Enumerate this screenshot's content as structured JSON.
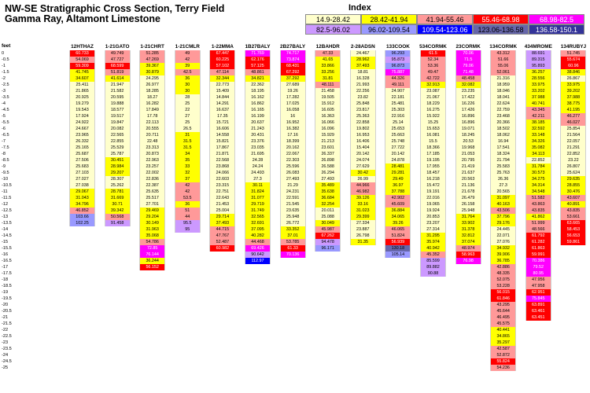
{
  "title": {
    "line1": "NW-SE Stratigraphic Cross Section, Terry Field",
    "line2": "Gamma Ray, Altamont Limestone"
  },
  "legend": {
    "title": "Index",
    "ranges": [
      {
        "label": "14.9-28.42",
        "color": "#FFFFCC",
        "text_color": "#000000"
      },
      {
        "label": "28.42-41.94",
        "color": "#FFFF00",
        "text_color": "#000000"
      },
      {
        "label": "41.94-55.46",
        "color": "#FF9999",
        "text_color": "#000000"
      },
      {
        "label": "55.46-68.98",
        "color": "#FF0000",
        "text_color": "#FFFFFF"
      },
      {
        "label": "68.98-82.5",
        "color": "#FF00FF",
        "text_color": "#FFFFFF"
      },
      {
        "label": "82.5-96.02",
        "color": "#CC99FF",
        "text_color": "#000000"
      },
      {
        "label": "96.02-109.54",
        "color": "#9999FF",
        "text_color": "#000000"
      },
      {
        "label": "109.54-123.06",
        "color": "#0000FF",
        "text_color": "#FFFFFF"
      },
      {
        "label": "123.06-136.58",
        "color": "#6666AA",
        "text_color": "#000000"
      },
      {
        "label": "136.58-150.1",
        "color": "#333399",
        "text_color": "#FFFFFF"
      }
    ]
  },
  "feet_header": "feet",
  "feet": [
    "0",
    "-0.5",
    "-1",
    "-1.5",
    "-2",
    "-2.5",
    "-3",
    "-3.5",
    "-4",
    "-4.5",
    "-5",
    "-5.5",
    "-6",
    "-6.5",
    "-7",
    "-7.5",
    "-8",
    "-8.5",
    "-9",
    "-9.5",
    "-10",
    "-10.5",
    "-11",
    "-11.5",
    "-12",
    "-12.5",
    "-13",
    "-13.5",
    "-14",
    "-14.5",
    "-15",
    "-15.5",
    "-16",
    "-16.5",
    "-17",
    "-17.5",
    "-18",
    "-18.5",
    "-19",
    "-19.5",
    "-20",
    "-20.5",
    "-21",
    "-21.5",
    "-22",
    "-22.5",
    "-23",
    "-23.5",
    "-24",
    "-24.5",
    "-25"
  ],
  "wells": [
    {
      "name": "12HTHAZ",
      "values": [
        "60.733",
        "54.069",
        "59.309",
        "41.745",
        "34.607",
        "25.411",
        "21.865",
        "20.925",
        "19.279",
        "19.543",
        "17.924",
        "24.922",
        "24.667",
        "23.965",
        "26.332",
        "25.165",
        "25.687",
        "27.506",
        "25.683",
        "27.103",
        "27.027",
        "27.038",
        "29.067",
        "31.043",
        "34.796",
        "46.852",
        "103.66",
        "102.25"
      ]
    },
    {
      "name": "1-21GATO",
      "values": [
        "49.749",
        "47.727",
        "68.599",
        "51.819",
        "41.614",
        "21.947",
        "21.582",
        "20.595",
        "19.888",
        "18.577",
        "19.517",
        "19.847",
        "20.082",
        "22.565",
        "22.855",
        "25.529",
        "25.787",
        "30.451",
        "28.984",
        "29.207",
        "28.307",
        "25.262",
        "28.781",
        "31.669",
        "30.71",
        "39.342",
        "50.568",
        "91.458"
      ]
    },
    {
      "name": "1-21CHRT",
      "values": [
        "51.285",
        "47.269",
        "39.367",
        "30.879",
        "24.295",
        "26.977",
        "18.285",
        "18.27",
        "16.282",
        "17.849",
        "17.78",
        "22.113",
        "20.555",
        "20.711",
        "22.48",
        "23.313",
        "20.873",
        "22.963",
        "23.257",
        "22.002",
        "22.836",
        "22.387",
        "25.635",
        "25.517",
        "27.701",
        "29.469",
        "29.204",
        "30.149",
        "31.963",
        "35.068",
        "54.786",
        "72.85",
        "76.144",
        "36.244",
        "56.152"
      ]
    },
    {
      "name": "1-21CMLR",
      "values": [
        "49",
        "42",
        "39",
        "42.5",
        "36",
        "30",
        "30",
        "28",
        "25",
        "22",
        "27",
        "25",
        "26.5",
        "31",
        "31.5",
        "31.5",
        "34",
        "35",
        "33",
        "32",
        "37",
        "42",
        "42",
        "53.5",
        "36",
        "51",
        "44",
        "95.5",
        "95"
      ]
    },
    {
      "name": "1-22MMA",
      "values": [
        "67.447",
        "60.225",
        "57.102",
        "47.114",
        "32.344",
        "22.773",
        "15.409",
        "14.844",
        "14.291",
        "16.637",
        "17.35",
        "15.721",
        "16.606",
        "14.558",
        "15.821",
        "17.867",
        "21.871",
        "22.568",
        "23.868",
        "24.066",
        "22.603",
        "23.315",
        "22.751",
        "22.643",
        "21.453",
        "25.004",
        "29.714",
        "37.493",
        "44.715",
        "47.767",
        "52.487",
        "60.982"
      ]
    },
    {
      "name": "1B27BALY",
      "values": [
        "71.769",
        "62.176",
        "57.125",
        "48.861",
        "34.821",
        "22.362",
        "18.195",
        "16.162",
        "16.862",
        "16.165",
        "16.199",
        "20.637",
        "21.243",
        "20.431",
        "23.376",
        "23.035",
        "21.695",
        "24.28",
        "24.24",
        "24.493",
        "27.3",
        "30.11",
        "31.824",
        "31.077",
        "29.719",
        "31.749",
        "32.565",
        "32.691",
        "37.095",
        "40.282",
        "44.468",
        "69.426",
        "90.642",
        "112.97"
      ]
    },
    {
      "name": "2B27BALY",
      "values": [
        "74.717",
        "73.874",
        "68.431",
        "67.292",
        "37.292",
        "27.689",
        "19.26",
        "17.282",
        "17.025",
        "16.058",
        "16",
        "16.952",
        "16.382",
        "17.16",
        "18.399",
        "20.162",
        "22.067",
        "22.303",
        "25.596",
        "26.083",
        "27.493",
        "21.29",
        "24.231",
        "22.591",
        "21.545",
        "23.635",
        "25.948",
        "26.772",
        "33.352",
        "37.01",
        "53.785",
        "61.33",
        "70.136"
      ]
    },
    {
      "name": "12BAHDR",
      "values": [
        "47.33",
        "41.65",
        "33.866",
        "33.256",
        "31.81",
        "48.111",
        "21.458",
        "19.505",
        "15.912",
        "16.605",
        "16.363",
        "16.066",
        "16.096",
        "15.929",
        "21.213",
        "23.601",
        "26.337",
        "26.898",
        "26.588",
        "26.294",
        "27.493",
        "35.489",
        "35.638",
        "36.684",
        "32.254",
        "20.011",
        "25.088",
        "30.049",
        "45.987",
        "67.262",
        "94.478",
        "96.171"
      ]
    },
    {
      "name": "2-28ADSN",
      "values": [
        "24.467",
        "28.962",
        "37.493",
        "18.81",
        "16.328",
        "21.993",
        "22.256",
        "23.82",
        "25.848",
        "23.817",
        "25.363",
        "22.858",
        "19.802",
        "16.953",
        "16.406",
        "15.404",
        "20.142",
        "24.074",
        "27.629",
        "30.42",
        "26.99",
        "44.966",
        "46.982",
        "39.126",
        "33.16",
        "31.023",
        "29.399",
        "27.334",
        "23.887",
        "26.798",
        "31.35"
      ]
    },
    {
      "name": "133COOK",
      "values": [
        "96.293",
        "95.873",
        "96.873",
        "75.887",
        "44.326",
        "49.111",
        "24.907",
        "22.181",
        "25.481",
        "25.303",
        "22.916",
        "25.14",
        "25.653",
        "25.663",
        "25.748",
        "27.722",
        "20.142",
        "24.878",
        "28.481",
        "29.281",
        "29.49",
        "36.97",
        "37.788",
        "42.902",
        "45.609",
        "36.884",
        "34.065",
        "39.26",
        "46.065",
        "51.824",
        "56.939",
        "130.18",
        "105.14"
      ]
    },
    {
      "name": "534CORMK",
      "values": [
        "61.5",
        "52.34",
        "53.36",
        "49.47",
        "42.722",
        "32.913",
        "23.087",
        "21.067",
        "18.229",
        "16.275",
        "15.922",
        "15.25",
        "15.653",
        "16.081",
        "15.5",
        "18.366",
        "17.185",
        "19.195",
        "17.955",
        "18.457",
        "16.218",
        "15.472",
        "19.191",
        "22.016",
        "19.065",
        "19.924",
        "20.853",
        "23.207",
        "27.314",
        "31.295",
        "35.974",
        "40.942",
        "45.352",
        "85.599",
        "89.882",
        "90.88"
      ]
    },
    {
      "name": "23CORMK",
      "values": [
        "70.06",
        "71.5",
        "79.06",
        "71.48",
        "48.458",
        "32.082",
        "23.235",
        "17.422",
        "16.226",
        "17.426",
        "16.896",
        "16.896",
        "19.071",
        "18.245",
        "20.53",
        "19.968",
        "21.053",
        "20.795",
        "21.419",
        "21.637",
        "20.563",
        "21.136",
        "21.678",
        "26.479",
        "26.158",
        "25.948",
        "31.764",
        "33.902",
        "31.378",
        "32.812",
        "37.074",
        "48.974",
        "58.963",
        "76.98"
      ]
    },
    {
      "name": "134CORMK",
      "values": [
        "43.312",
        "51.66",
        "55.06",
        "52.061",
        "21.316",
        "18.959",
        "18.046",
        "18.041",
        "22.624",
        "22.759",
        "23.468",
        "20.366",
        "18.502",
        "18.062",
        "16.94",
        "17.541",
        "18.324",
        "21.794",
        "25.583",
        "25.763",
        "26.36",
        "27.3",
        "20.565",
        "31.097",
        "40.163",
        "43.506",
        "37.796",
        "29.176",
        "24.445",
        "22.071",
        "27.076",
        "34.932",
        "39.906",
        "36.785",
        "42.886",
        "48.335",
        "52.075",
        "53.228",
        "56.015",
        "61.846",
        "43.295",
        "45.644",
        "46.495",
        "45.575",
        "40.441",
        "34.865",
        "35.297",
        "42.587",
        "52.872",
        "55.824",
        "54.236"
      ]
    },
    {
      "name": "434MROME",
      "values": [
        "88.691",
        "89.315",
        "95.893",
        "36.257",
        "28.556",
        "33.975",
        "33.202",
        "37.988",
        "40.741",
        "43.345",
        "42.211",
        "38.185",
        "32.592",
        "33.148",
        "34.326",
        "35.082",
        "34.113",
        "22.852",
        "31.784",
        "30.573",
        "34.275",
        "34.314",
        "34.548",
        "51.582",
        "43.863",
        "43.835",
        "41.862",
        "51.999",
        "48.566",
        "61.792",
        "61.282",
        "61.863",
        "59.991",
        "70.386",
        "79.52",
        "80.95",
        "47.956",
        "47.958",
        "62.951",
        "75.845",
        "63.891",
        "63.461",
        "63.451"
      ]
    },
    {
      "name": "134RUBYJ",
      "values": [
        "51.745",
        "55.674",
        "60.96",
        "38.846",
        "26.867",
        "33.975",
        "39.202",
        "37.988",
        "38.775",
        "41.195",
        "46.277",
        "46.027",
        "25.854",
        "21.564",
        "22.057",
        "21.291",
        "22.852",
        "23.22",
        "26.807",
        "25.624",
        "29.635",
        "28.855",
        "30.476",
        "43.607",
        "40.891",
        "43.835",
        "53.661",
        "63.665",
        "58.453",
        "56.653",
        "59.861"
      ]
    }
  ]
}
